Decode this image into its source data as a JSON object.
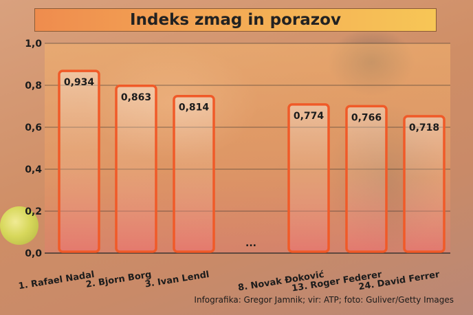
{
  "header": {
    "title": "Indeks zmag in porazov"
  },
  "credit": "Infografika: Gregor Jamnik; vir: ATP; foto: Guliver/Getty Images",
  "chart_data": {
    "type": "bar",
    "title": "Indeks zmag in porazov",
    "categories": [
      "1. Rafael Nadal",
      "2. Bjorn Borg",
      "3. Ivan Lendl",
      "...",
      "8. Novak Đoković",
      "13. Roger Federer",
      "24. David Ferrer"
    ],
    "values": [
      0.934,
      0.863,
      0.814,
      null,
      0.774,
      0.766,
      0.718
    ],
    "value_labels": [
      "0,934",
      "0,863",
      "0,814",
      "",
      "0,774",
      "0,766",
      "0,718"
    ],
    "gap_label": "...",
    "yticks": [
      "0,0",
      "0,2",
      "0,4",
      "0,6",
      "0,8",
      "1,0"
    ],
    "ylim": [
      0,
      1.0
    ],
    "grid": true,
    "colors": {
      "bar_border": "#f05a28",
      "grid": "#2a2a2a",
      "bar_top": "#ffffff",
      "bar_bottom": "#f07070"
    }
  }
}
